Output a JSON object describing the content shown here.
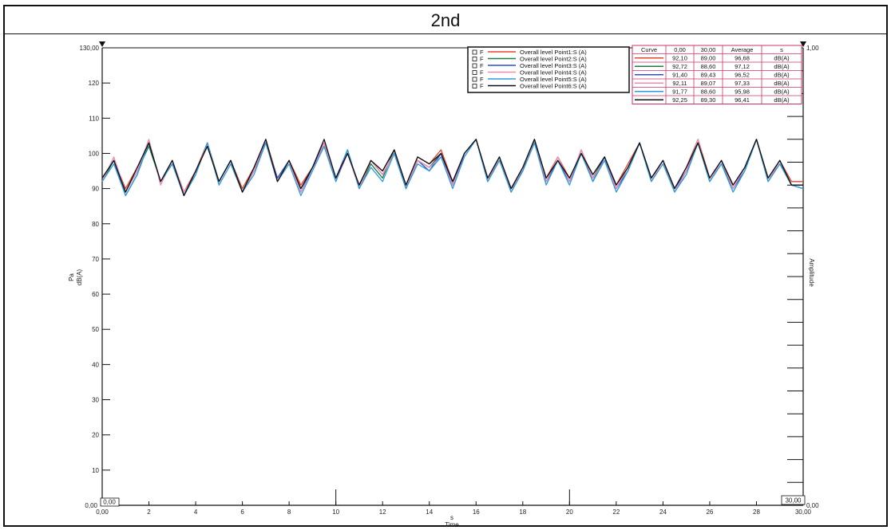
{
  "title": "2nd",
  "chart_data": {
    "type": "line",
    "xlabel_unit": "s",
    "xlabel": "Time",
    "ylabel_unit": "Pa",
    "ylabel_db": "dB(A)",
    "y2label": "Amplitude",
    "xlim": [
      0,
      30
    ],
    "ylim": [
      0,
      130
    ],
    "y2lim": [
      0,
      1
    ],
    "x_ticks": [
      "0,00",
      "2",
      "4",
      "6",
      "8",
      "10",
      "12",
      "14",
      "16",
      "18",
      "20",
      "22",
      "24",
      "26",
      "28",
      "30,00"
    ],
    "y_ticks": [
      "0,00",
      "10",
      "20",
      "30",
      "40",
      "50",
      "60",
      "70",
      "80",
      "90",
      "100",
      "110",
      "120",
      "130,00"
    ],
    "y2_ticks": [
      "0,00",
      "1,00"
    ],
    "cursor_start": "0,00",
    "cursor_end": "30,00",
    "grid": false,
    "legend_position": "top-right",
    "x": [
      0,
      0.5,
      1,
      1.5,
      2,
      2.5,
      3,
      3.5,
      4,
      4.5,
      5,
      5.5,
      6,
      6.5,
      7,
      7.5,
      8,
      8.5,
      9,
      9.5,
      10,
      10.5,
      11,
      11.5,
      12,
      12.5,
      13,
      13.5,
      14,
      14.5,
      15,
      15.5,
      16,
      16.5,
      17,
      17.5,
      18,
      18.5,
      19,
      19.5,
      20,
      20.5,
      21,
      21.5,
      22,
      22.5,
      23,
      23.5,
      24,
      24.5,
      25,
      25.5,
      26,
      26.5,
      27,
      27.5,
      28,
      28.5,
      29,
      29.5,
      30
    ],
    "series": [
      {
        "name": "Overall level Point1:S (A)",
        "color": "#e8432e",
        "values": [
          93,
          98,
          90,
          96,
          103,
          92,
          98,
          89,
          95,
          103,
          92,
          98,
          90,
          96,
          104,
          93,
          98,
          91,
          96,
          103,
          93,
          100,
          91,
          98,
          95,
          101,
          91,
          99,
          97,
          101,
          92,
          100,
          104,
          93,
          99,
          90,
          96,
          104,
          93,
          99,
          93,
          100,
          93,
          99,
          91,
          97,
          103,
          93,
          98,
          90,
          96,
          104,
          93,
          98,
          91,
          96,
          104,
          93,
          98,
          92,
          92
        ]
      },
      {
        "name": "Overall level Point2:S (A)",
        "color": "#1e7b4a",
        "values": [
          92,
          98,
          89,
          95,
          102,
          92,
          97,
          88,
          94,
          103,
          92,
          98,
          89,
          96,
          103,
          92,
          98,
          90,
          96,
          102,
          92,
          101,
          90,
          97,
          93,
          101,
          90,
          98,
          96,
          100,
          91,
          100,
          104,
          92,
          99,
          89,
          95,
          104,
          92,
          98,
          92,
          101,
          93,
          99,
          90,
          96,
          103,
          92,
          98,
          89,
          95,
          103,
          92,
          97,
          90,
          96,
          104,
          92,
          97,
          91,
          91
        ]
      },
      {
        "name": "Overall level Point3:S (A)",
        "color": "#2a4fd0",
        "values": [
          93,
          98,
          88,
          94,
          103,
          92,
          98,
          88,
          95,
          102,
          92,
          98,
          89,
          95,
          103,
          93,
          98,
          89,
          96,
          103,
          93,
          101,
          90,
          98,
          94,
          100,
          90,
          98,
          95,
          100,
          91,
          100,
          104,
          92,
          98,
          90,
          95,
          103,
          92,
          98,
          92,
          100,
          92,
          99,
          90,
          95,
          103,
          93,
          98,
          90,
          95,
          103,
          92,
          98,
          90,
          95,
          104,
          92,
          98,
          91,
          90
        ]
      },
      {
        "name": "Overall level Point4:S (A)",
        "color": "#f08ab0",
        "values": [
          92,
          99,
          89,
          95,
          104,
          91,
          98,
          89,
          94,
          103,
          91,
          97,
          89,
          95,
          104,
          92,
          98,
          89,
          95,
          103,
          92,
          100,
          90,
          98,
          94,
          100,
          90,
          98,
          96,
          99,
          91,
          99,
          104,
          92,
          99,
          89,
          96,
          103,
          92,
          99,
          92,
          101,
          93,
          98,
          90,
          96,
          103,
          92,
          98,
          89,
          95,
          104,
          92,
          98,
          90,
          96,
          104,
          92,
          98,
          91,
          91
        ]
      },
      {
        "name": "Overall level Point5:S (A)",
        "color": "#2b9de0",
        "values": [
          92,
          97,
          88,
          94,
          103,
          92,
          97,
          88,
          94,
          103,
          91,
          97,
          89,
          94,
          103,
          92,
          97,
          88,
          95,
          102,
          92,
          101,
          90,
          96,
          92,
          100,
          90,
          97,
          95,
          99,
          90,
          99,
          104,
          92,
          98,
          89,
          95,
          103,
          91,
          98,
          91,
          100,
          92,
          98,
          89,
          95,
          103,
          92,
          97,
          89,
          94,
          103,
          92,
          97,
          89,
          95,
          104,
          92,
          97,
          91,
          90
        ]
      },
      {
        "name": "Overall level Point6:S (A)",
        "color": "#111111",
        "values": [
          93,
          98,
          89,
          96,
          103,
          92,
          98,
          88,
          95,
          102,
          92,
          98,
          89,
          96,
          104,
          92,
          98,
          90,
          96,
          104,
          93,
          100,
          91,
          98,
          95,
          101,
          91,
          99,
          97,
          100,
          92,
          100,
          104,
          93,
          99,
          90,
          96,
          104,
          93,
          98,
          93,
          100,
          94,
          99,
          91,
          96,
          103,
          93,
          98,
          90,
          96,
          103,
          93,
          98,
          91,
          96,
          104,
          93,
          98,
          91,
          91
        ]
      }
    ],
    "table": {
      "headers": [
        "Curve",
        "0,00",
        "30,00",
        "Average",
        "s"
      ],
      "rows": [
        [
          "92,10",
          "89,00",
          "96,68",
          "dB(A)"
        ],
        [
          "92,72",
          "88,60",
          "97,12",
          "dB(A)"
        ],
        [
          "91,40",
          "89,43",
          "96,52",
          "dB(A)"
        ],
        [
          "92,11",
          "89,07",
          "97,33",
          "dB(A)"
        ],
        [
          "91,77",
          "88,60",
          "95,98",
          "dB(A)"
        ],
        [
          "92,25",
          "89,30",
          "96,41",
          "dB(A)"
        ]
      ]
    },
    "legend_prefix": "F"
  }
}
